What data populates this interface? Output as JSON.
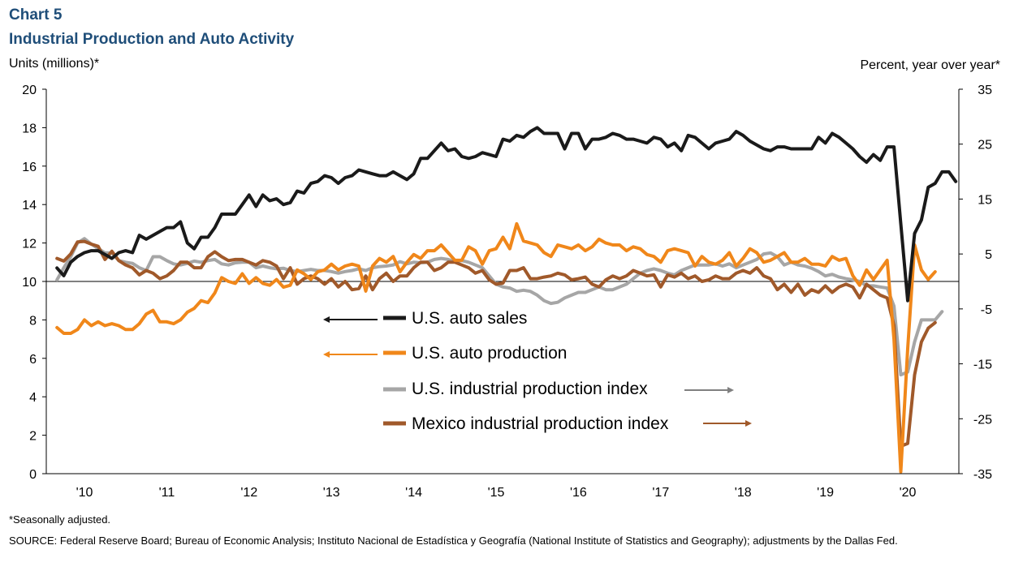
{
  "header": {
    "chart_number": "Chart 5",
    "title": "Industrial Production and Auto Activity"
  },
  "axes": {
    "left_unit": "Units  (millions)*",
    "right_unit": "Percent, year over year*"
  },
  "footnote": "*Seasonally adjusted.",
  "source": "SOURCE:  Federal Reserve Board; Bureau of Economic Analysis; Instituto Nacional de Estadística y Geografía (National Institute of Statistics and Geography); adjustments  by the Dallas Fed.",
  "colors": {
    "us_auto_sales": "#1a1a1a",
    "us_auto_production": "#f0871a",
    "us_industrial_production": "#a6a6a6",
    "mexico_industrial_production": "#a0592a",
    "arrow_sales": "#1a1a1a",
    "arrow_production": "#f0871a",
    "arrow_us_ip": "#808080",
    "arrow_mexico_ip": "#a0592a"
  },
  "chart_data": {
    "type": "line",
    "x_tick_labels": [
      "'10",
      "'11",
      "'12",
      "'13",
      "'14",
      "'15",
      "'16",
      "'17",
      "'18",
      "'19",
      "'20"
    ],
    "x_range": [
      "2009-09",
      "2020-06"
    ],
    "left_axis": {
      "ylim": [
        0,
        20
      ],
      "ticks": [
        0,
        2,
        4,
        6,
        8,
        10,
        12,
        14,
        16,
        18,
        20
      ]
    },
    "right_axis": {
      "ylim": [
        -35,
        35
      ],
      "ticks": [
        -35,
        -25,
        -15,
        -5,
        5,
        15,
        25,
        35
      ]
    },
    "zero_line": "right axis 0",
    "legend": [
      {
        "label": "U.S. auto sales",
        "axis": "left",
        "arrow": "left"
      },
      {
        "label": "U.S. auto production",
        "axis": "left",
        "arrow": "left"
      },
      {
        "label": "U.S. industrial production index",
        "axis": "right",
        "arrow": "right"
      },
      {
        "label": "Mexico industrial production index",
        "axis": "right",
        "arrow": "right"
      }
    ],
    "series": [
      {
        "name": "U.S. auto sales",
        "axis": "left",
        "start": "2009-09",
        "values": [
          10.7,
          10.3,
          11.0,
          11.3,
          11.5,
          11.6,
          11.6,
          11.4,
          11.2,
          11.5,
          11.6,
          11.5,
          12.4,
          12.2,
          12.4,
          12.6,
          12.8,
          12.8,
          13.1,
          12.0,
          11.7,
          12.3,
          12.3,
          12.8,
          13.5,
          13.5,
          13.5,
          14.0,
          14.5,
          13.9,
          14.5,
          14.2,
          14.3,
          14.0,
          14.1,
          14.7,
          14.6,
          15.1,
          15.2,
          15.5,
          15.4,
          15.1,
          15.4,
          15.5,
          15.8,
          15.7,
          15.6,
          15.5,
          15.5,
          15.7,
          15.5,
          15.3,
          15.6,
          16.4,
          16.4,
          16.8,
          17.2,
          16.8,
          16.9,
          16.5,
          16.4,
          16.5,
          16.7,
          16.6,
          16.5,
          17.4,
          17.3,
          17.6,
          17.5,
          17.8,
          18.0,
          17.7,
          17.7,
          17.7,
          16.9,
          17.7,
          17.7,
          16.9,
          17.4,
          17.4,
          17.5,
          17.7,
          17.6,
          17.4,
          17.4,
          17.3,
          17.2,
          17.5,
          17.4,
          17.0,
          17.2,
          16.8,
          17.6,
          17.5,
          17.2,
          16.9,
          17.2,
          17.3,
          17.4,
          17.8,
          17.6,
          17.3,
          17.1,
          16.9,
          16.8,
          17.0,
          17.0,
          16.9,
          16.9,
          16.9,
          16.9,
          17.5,
          17.2,
          17.7,
          17.5,
          17.2,
          16.9,
          16.5,
          16.2,
          16.6,
          16.3,
          17.0,
          17.0,
          13.0,
          9.0,
          12.5,
          13.2,
          14.9,
          15.1,
          15.7,
          15.7,
          15.2
        ]
      },
      {
        "name": "U.S. auto production",
        "axis": "left",
        "start": "2009-09",
        "values": [
          7.6,
          7.3,
          7.3,
          7.5,
          8.0,
          7.7,
          7.9,
          7.7,
          7.8,
          7.7,
          7.5,
          7.5,
          7.8,
          8.3,
          8.5,
          7.9,
          7.9,
          7.8,
          8.0,
          8.4,
          8.6,
          9.0,
          8.9,
          9.4,
          10.2,
          10.0,
          9.9,
          10.4,
          9.9,
          10.2,
          9.9,
          9.8,
          10.1,
          9.7,
          9.8,
          10.6,
          10.4,
          10.1,
          10.5,
          10.6,
          10.9,
          10.6,
          10.8,
          10.9,
          10.8,
          9.5,
          10.8,
          11.2,
          11.0,
          11.3,
          10.5,
          11.0,
          11.4,
          11.2,
          11.6,
          11.6,
          11.9,
          11.5,
          11.1,
          11.1,
          11.8,
          11.6,
          10.9,
          11.6,
          11.7,
          12.3,
          11.7,
          13.0,
          12.1,
          12.0,
          11.9,
          11.5,
          11.3,
          11.9,
          11.8,
          11.7,
          11.9,
          11.6,
          11.8,
          12.2,
          12.0,
          11.9,
          11.9,
          11.6,
          11.8,
          11.7,
          11.4,
          11.3,
          11.0,
          11.6,
          11.7,
          11.6,
          11.5,
          10.8,
          11.3,
          11.0,
          10.9,
          11.1,
          11.5,
          10.8,
          11.2,
          11.7,
          11.5,
          11.0,
          11.1,
          11.3,
          11.5,
          11.0,
          11.0,
          11.2,
          10.9,
          10.9,
          10.8,
          11.3,
          11.1,
          11.2,
          10.3,
          9.8,
          10.6,
          10.1,
          10.6,
          11.1,
          7.0,
          0.1,
          6.5,
          11.9,
          10.6,
          10.1,
          10.5
        ]
      },
      {
        "name": "U.S. industrial production index",
        "axis": "right",
        "start": "2009-09",
        "values": [
          0.3,
          2.5,
          4.5,
          7.0,
          7.8,
          6.8,
          6.0,
          5.2,
          5.2,
          3.8,
          3.5,
          3.3,
          2.5,
          2.0,
          4.5,
          4.5,
          3.8,
          3.2,
          3.0,
          3.3,
          3.7,
          3.5,
          3.8,
          4.0,
          3.2,
          3.0,
          3.4,
          3.5,
          3.5,
          2.5,
          2.8,
          2.5,
          2.3,
          2.4,
          2.0,
          1.8,
          2.0,
          2.2,
          2.0,
          2.0,
          1.8,
          1.5,
          1.8,
          2.0,
          2.3,
          2.0,
          2.5,
          2.7,
          2.8,
          3.0,
          3.6,
          3.2,
          3.5,
          3.4,
          3.5,
          4.0,
          4.2,
          4.0,
          3.6,
          3.8,
          3.5,
          3.0,
          2.5,
          1.0,
          -0.5,
          -1.0,
          -1.2,
          -1.8,
          -1.6,
          -1.8,
          -2.5,
          -3.5,
          -4.0,
          -3.8,
          -3.0,
          -2.5,
          -2.0,
          -2.0,
          -1.5,
          -1.0,
          -1.5,
          -1.5,
          -1.0,
          -0.5,
          0.5,
          1.5,
          2.0,
          2.3,
          2.0,
          1.5,
          1.2,
          2.0,
          2.5,
          3.0,
          3.0,
          3.0,
          3.2,
          2.8,
          3.2,
          2.5,
          3.0,
          3.5,
          4.0,
          5.0,
          5.2,
          4.5,
          3.0,
          3.5,
          3.0,
          2.8,
          2.4,
          1.8,
          1.0,
          1.3,
          0.8,
          0.5,
          0.3,
          0.0,
          -0.8,
          -0.8,
          -1.0,
          -1.2,
          -4.5,
          -17.0,
          -16.5,
          -11.0,
          -7.0,
          -7.0,
          -7.0,
          -5.5
        ]
      },
      {
        "name": "Mexico industrial production index",
        "axis": "right",
        "start": "2009-09",
        "values": [
          4.2,
          3.7,
          5.0,
          7.2,
          7.3,
          6.8,
          6.4,
          4.0,
          5.5,
          3.8,
          3.0,
          2.5,
          1.2,
          2.0,
          1.5,
          0.5,
          1.0,
          2.0,
          3.5,
          3.5,
          2.5,
          2.5,
          4.5,
          5.4,
          4.5,
          3.8,
          4.0,
          4.0,
          3.5,
          3.0,
          3.8,
          3.5,
          2.8,
          0.5,
          2.5,
          -0.5,
          0.5,
          1.0,
          0.5,
          -0.5,
          0.5,
          -1.0,
          0.0,
          -1.5,
          -1.3,
          1.0,
          -1.5,
          0.5,
          1.5,
          0.0,
          1.0,
          1.0,
          2.5,
          3.5,
          3.5,
          2.0,
          2.5,
          3.5,
          3.5,
          3.0,
          2.5,
          1.5,
          2.0,
          0.3,
          -0.5,
          -0.3,
          2.0,
          2.0,
          2.5,
          0.5,
          0.5,
          0.8,
          1.0,
          1.5,
          1.2,
          0.3,
          0.5,
          0.8,
          -0.5,
          -1.0,
          0.3,
          1.0,
          0.5,
          1.0,
          2.0,
          1.5,
          1.0,
          1.2,
          -1.0,
          1.2,
          0.8,
          1.5,
          0.5,
          1.0,
          0.0,
          0.3,
          1.0,
          0.5,
          0.5,
          1.5,
          2.0,
          1.5,
          2.5,
          1.0,
          0.5,
          -1.5,
          -0.5,
          -2.0,
          -0.5,
          -2.5,
          -1.5,
          -2.0,
          -0.8,
          -2.0,
          -1.0,
          -0.5,
          -1.0,
          -3.0,
          -0.5,
          -1.5,
          -2.5,
          -3.0,
          -8.0,
          -30.0,
          -29.5,
          -17.0,
          -11.0,
          -8.5,
          -7.5
        ]
      }
    ]
  }
}
